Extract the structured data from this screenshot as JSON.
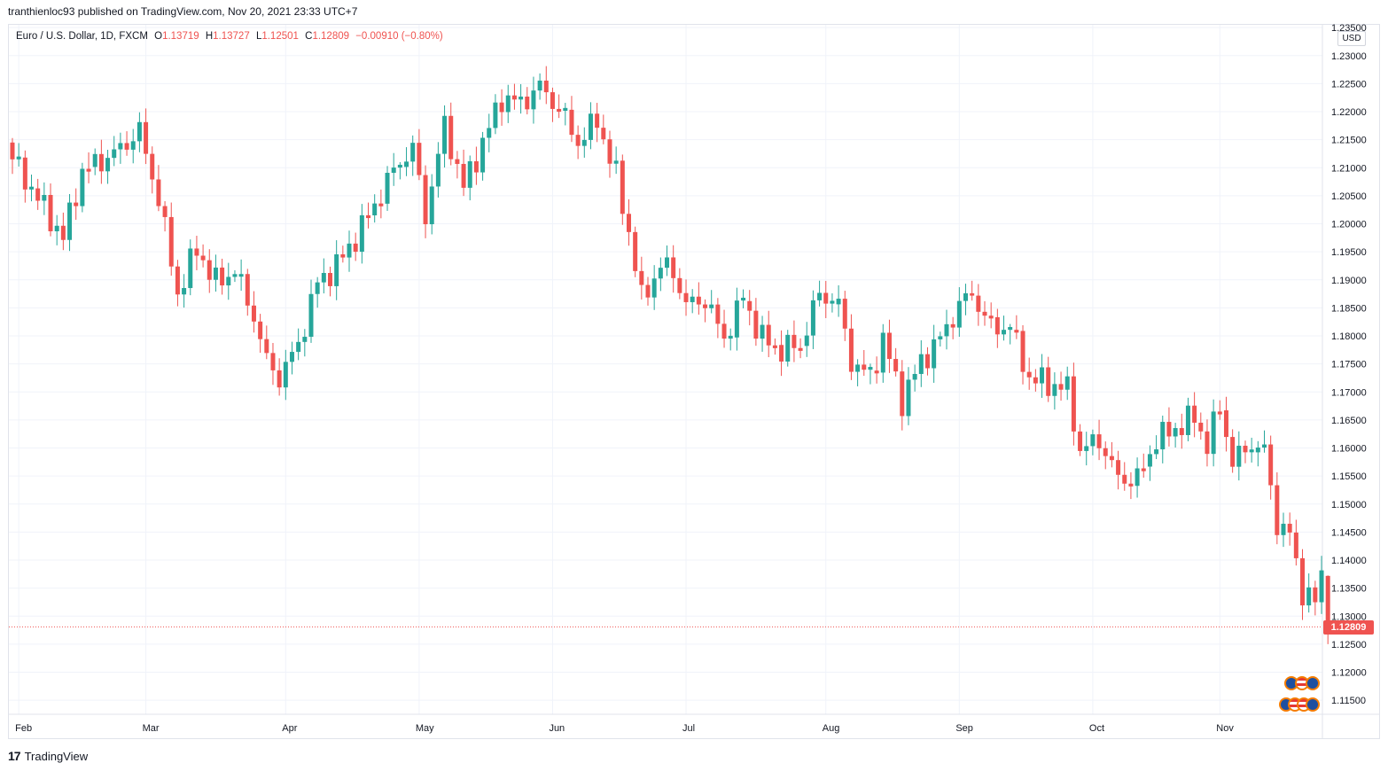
{
  "header": {
    "published_text": "tranthienloc93 published on TradingView.com, Nov 20, 2021 23:33 UTC+7"
  },
  "legend": {
    "symbol": "Euro / U.S. Dollar, 1D, FXCM",
    "open_label": "O",
    "open_value": "1.13719",
    "high_label": "H",
    "high_value": "1.13727",
    "low_label": "L",
    "low_value": "1.12501",
    "close_label": "C",
    "close_value": "1.12809",
    "change_value": "−0.00910 (−0.80%)"
  },
  "price_axis": {
    "currency": "USD",
    "last_price_label": "1.12809"
  },
  "footer": {
    "brand_logo": "17",
    "brand_name": "TradingView"
  },
  "colors": {
    "up": "#26a69a",
    "down": "#ef5350",
    "grid": "#f0f3fa",
    "axis_text": "#131722"
  },
  "icons": [
    "euro-flag-icon",
    "us-flag-icon",
    "tradingview-logo-icon"
  ],
  "chart_data": {
    "type": "candlestick",
    "title": "Euro / U.S. Dollar, 1D, FXCM",
    "ylim": [
      1.1125,
      1.2355
    ],
    "yticks": [
      1.235,
      1.23,
      1.225,
      1.22,
      1.215,
      1.21,
      1.205,
      1.2,
      1.195,
      1.19,
      1.185,
      1.18,
      1.175,
      1.17,
      1.165,
      1.16,
      1.155,
      1.15,
      1.145,
      1.14,
      1.135,
      1.13,
      1.125,
      1.12,
      1.115
    ],
    "ytick_labels": [
      "1.23500",
      "1.23000",
      "1.22500",
      "1.22000",
      "1.21500",
      "1.21000",
      "1.20500",
      "1.20000",
      "1.19500",
      "1.19000",
      "1.18500",
      "1.18000",
      "1.17500",
      "1.17000",
      "1.16500",
      "1.16000",
      "1.15500",
      "1.15000",
      "1.14500",
      "1.14000",
      "1.13500",
      "1.13000",
      "1.12500",
      "1.12000",
      "1.11500"
    ],
    "xtick_labels": [
      "Feb",
      "Mar",
      "Apr",
      "May",
      "Jun",
      "Jul",
      "Aug",
      "Sep",
      "Oct",
      "Nov"
    ],
    "xtick_bar_index": [
      1,
      21,
      43,
      64,
      85,
      106,
      128,
      149,
      170,
      190
    ],
    "last_price": 1.12809,
    "anchors": [
      [
        0,
        1.2115
      ],
      [
        4,
        1.2045
      ],
      [
        8,
        1.1975
      ],
      [
        11,
        1.2095
      ],
      [
        16,
        1.2125
      ],
      [
        20,
        1.2165
      ],
      [
        23,
        1.2045
      ],
      [
        26,
        1.1875
      ],
      [
        29,
        1.1955
      ],
      [
        32,
        1.1895
      ],
      [
        35,
        1.1915
      ],
      [
        38,
        1.1835
      ],
      [
        40,
        1.1755
      ],
      [
        42,
        1.1725
      ],
      [
        45,
        1.1785
      ],
      [
        48,
        1.1895
      ],
      [
        51,
        1.1925
      ],
      [
        54,
        1.1975
      ],
      [
        57,
        1.2035
      ],
      [
        60,
        1.2095
      ],
      [
        63,
        1.2135
      ],
      [
        65,
        1.2015
      ],
      [
        68,
        1.2175
      ],
      [
        71,
        1.2065
      ],
      [
        74,
        1.2145
      ],
      [
        77,
        1.2225
      ],
      [
        80,
        1.2215
      ],
      [
        83,
        1.2245
      ],
      [
        86,
        1.2205
      ],
      [
        89,
        1.2145
      ],
      [
        92,
        1.2185
      ],
      [
        95,
        1.2085
      ],
      [
        97,
        1.1985
      ],
      [
        99,
        1.1865
      ],
      [
        102,
        1.1925
      ],
      [
        104,
        1.1915
      ],
      [
        106,
        1.1855
      ],
      [
        109,
        1.1865
      ],
      [
        112,
        1.1795
      ],
      [
        115,
        1.1865
      ],
      [
        118,
        1.1795
      ],
      [
        121,
        1.1775
      ],
      [
        124,
        1.1785
      ],
      [
        127,
        1.1875
      ],
      [
        130,
        1.1855
      ],
      [
        132,
        1.1755
      ],
      [
        135,
        1.1725
      ],
      [
        137,
        1.1795
      ],
      [
        140,
        1.1685
      ],
      [
        143,
        1.1755
      ],
      [
        146,
        1.1795
      ],
      [
        149,
        1.1855
      ],
      [
        151,
        1.1875
      ],
      [
        154,
        1.1815
      ],
      [
        157,
        1.1815
      ],
      [
        160,
        1.1725
      ],
      [
        163,
        1.1715
      ],
      [
        166,
        1.1705
      ],
      [
        168,
        1.1595
      ],
      [
        171,
        1.1615
      ],
      [
        174,
        1.1545
      ],
      [
        177,
        1.1545
      ],
      [
        180,
        1.1615
      ],
      [
        183,
        1.1635
      ],
      [
        186,
        1.1655
      ],
      [
        188,
        1.1605
      ],
      [
        190,
        1.1675
      ],
      [
        192,
        1.1575
      ],
      [
        195,
        1.1605
      ],
      [
        197,
        1.1595
      ],
      [
        199,
        1.1465
      ],
      [
        201,
        1.1445
      ],
      [
        203,
        1.1345
      ],
      [
        205,
        1.1325
      ],
      [
        206,
        1.1372
      ],
      [
        207,
        1.12809
      ]
    ],
    "ohlc_summary_last_bar": {
      "open": 1.13719,
      "high": 1.13727,
      "low": 1.12501,
      "close": 1.12809
    }
  }
}
